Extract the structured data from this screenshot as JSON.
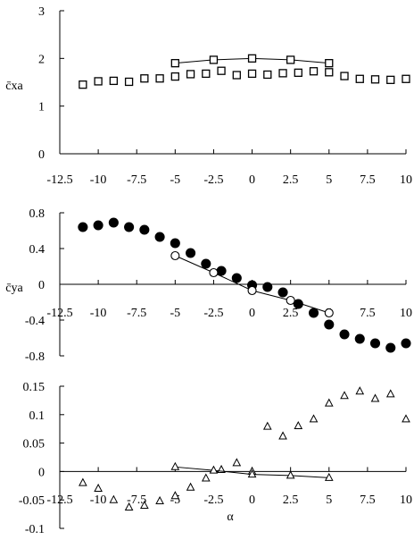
{
  "chart_data": [
    {
      "type": "scatter",
      "ylabel": "c̄xa",
      "xlim": [
        -12.5,
        10
      ],
      "ylim": [
        0,
        3
      ],
      "xticks": [
        -12.5,
        -10,
        -7.5,
        -5,
        -2.5,
        0,
        2.5,
        5,
        7.5,
        10
      ],
      "xtick_labels": [
        "-12.5",
        "-10",
        "-7.5",
        "-5",
        "-2.5",
        "0",
        "2.5",
        "5",
        "7.5",
        "10"
      ],
      "yticks": [
        0,
        1,
        2,
        3
      ],
      "ytick_labels": [
        "0",
        "1",
        "2",
        "3"
      ],
      "series": [
        {
          "marker": "square",
          "filled": false,
          "connected": false,
          "x": [
            -11,
            -10,
            -9,
            -8,
            -7,
            -6,
            -5,
            -4,
            -3,
            -2,
            -1,
            0,
            1,
            2,
            3,
            4,
            5,
            6,
            7,
            8,
            9,
            10
          ],
          "y": [
            1.45,
            1.52,
            1.53,
            1.51,
            1.58,
            1.58,
            1.62,
            1.67,
            1.68,
            1.74,
            1.65,
            1.68,
            1.66,
            1.69,
            1.7,
            1.73,
            1.71,
            1.63,
            1.57,
            1.56,
            1.55,
            1.57
          ]
        },
        {
          "marker": "square",
          "filled": false,
          "connected": true,
          "x": [
            -5,
            -2.5,
            0,
            2.5,
            5
          ],
          "y": [
            1.9,
            1.97,
            2.0,
            1.97,
            1.9
          ]
        }
      ]
    },
    {
      "type": "scatter",
      "ylabel": "c̄ya",
      "xlim": [
        -12.5,
        10
      ],
      "ylim": [
        -0.8,
        0.8
      ],
      "xticks": [
        -12.5,
        -10,
        -7.5,
        -5,
        -2.5,
        0,
        2.5,
        5,
        7.5,
        10
      ],
      "xtick_labels": [
        "-12.5",
        "-10",
        "-7.5",
        "-5",
        "-2.5",
        "0",
        "2.5",
        "5",
        "7.5",
        "10"
      ],
      "yticks": [
        -0.8,
        -0.4,
        0,
        0.4,
        0.8
      ],
      "ytick_labels": [
        "-0.8",
        "-0.4",
        "0",
        "0.4",
        "0.8"
      ],
      "series": [
        {
          "marker": "circle",
          "filled": true,
          "connected": false,
          "x": [
            -11,
            -10,
            -9,
            -8,
            -7,
            -6,
            -5,
            -4,
            -3,
            -2,
            -1,
            0,
            1,
            2,
            3,
            4,
            5,
            6,
            7,
            8,
            9,
            10
          ],
          "y": [
            0.64,
            0.66,
            0.69,
            0.64,
            0.61,
            0.53,
            0.46,
            0.35,
            0.23,
            0.15,
            0.07,
            -0.01,
            -0.03,
            -0.09,
            -0.22,
            -0.32,
            -0.45,
            -0.56,
            -0.61,
            -0.66,
            -0.71,
            -0.66
          ]
        },
        {
          "marker": "circle",
          "filled": false,
          "connected": true,
          "x": [
            -5,
            -2.5,
            0,
            2.5,
            5
          ],
          "y": [
            0.32,
            0.13,
            -0.07,
            -0.18,
            -0.32
          ]
        }
      ]
    },
    {
      "type": "scatter",
      "xlabel": "α",
      "xlim": [
        -12.5,
        10
      ],
      "ylim": [
        -0.1,
        0.15
      ],
      "xticks": [
        -12.5,
        -10,
        -7.5,
        -5,
        -2.5,
        0,
        2.5,
        5,
        7.5,
        10
      ],
      "xtick_labels": [
        "-12.5",
        "-10",
        "-7.5",
        "-5",
        "-2.5",
        "0",
        "2.5",
        "5",
        "7.5",
        "10"
      ],
      "yticks": [
        -0.1,
        -0.05,
        0,
        0.05,
        0.1,
        0.15
      ],
      "ytick_labels": [
        "-0.1",
        "-0.05",
        "0",
        "0.05",
        "0.1",
        "0.15"
      ],
      "series": [
        {
          "marker": "triangle",
          "filled": false,
          "connected": false,
          "x": [
            -11,
            -10,
            -9,
            -8,
            -7,
            -6,
            -5,
            -4,
            -3,
            -2,
            -1,
            0,
            1,
            2,
            3,
            4,
            5,
            6,
            7,
            8,
            9,
            10
          ],
          "y": [
            -0.02,
            -0.03,
            -0.05,
            -0.063,
            -0.06,
            -0.052,
            -0.043,
            -0.028,
            -0.012,
            0.003,
            0.015,
            0.0,
            0.079,
            0.062,
            0.08,
            0.092,
            0.12,
            0.133,
            0.141,
            0.128,
            0.136,
            0.092
          ]
        },
        {
          "marker": "triangle",
          "filled": false,
          "connected": true,
          "x": [
            -5,
            -2.5,
            0,
            2.5,
            5
          ],
          "y": [
            0.008,
            0.002,
            -0.005,
            -0.007,
            -0.011
          ]
        }
      ]
    }
  ]
}
